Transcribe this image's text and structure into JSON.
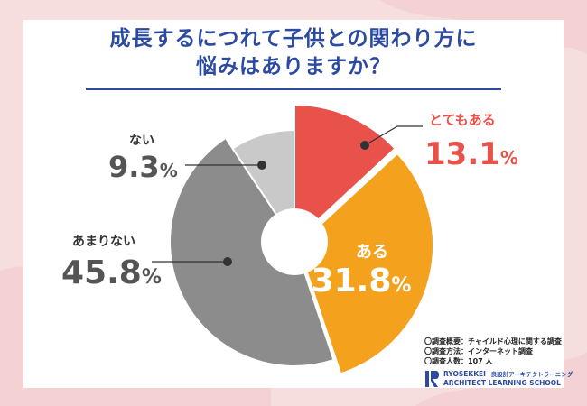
{
  "header": {
    "title_line1": "成長するにつれて子供との関わり方に",
    "title_line2": "悩みはありますか？"
  },
  "chart_data": {
    "type": "pie",
    "donut": true,
    "start": "12 o'clock",
    "direction": "clockwise",
    "slices": [
      {
        "label": "とてもある",
        "value": 13.1,
        "display": "13.1",
        "unit": "%",
        "color": "#e8524a",
        "label_color": "#e8524a"
      },
      {
        "label": "ある",
        "value": 31.8,
        "display": "31.8",
        "unit": "%",
        "color": "#f4a21e",
        "label_color": "#ffffff"
      },
      {
        "label": "あまりない",
        "value": 45.8,
        "display": "45.8",
        "unit": "%",
        "color": "#8c8c8c",
        "label_color": "#555555"
      },
      {
        "label": "ない",
        "value": 9.3,
        "display": "9.3",
        "unit": "%",
        "color": "#c9c9c9",
        "label_color": "#555555"
      }
    ]
  },
  "survey_notes": [
    "〇調査概要：チャイルド心理に関する調査",
    "〇調査方法：インターネット調査",
    "〇調査人数：107 人"
  ],
  "brand": {
    "name": "RYOSEKKEI",
    "name_jp": "良設計アーキテクトラーニング",
    "school": "ARCHITECT LEARNING SCHOOL"
  }
}
